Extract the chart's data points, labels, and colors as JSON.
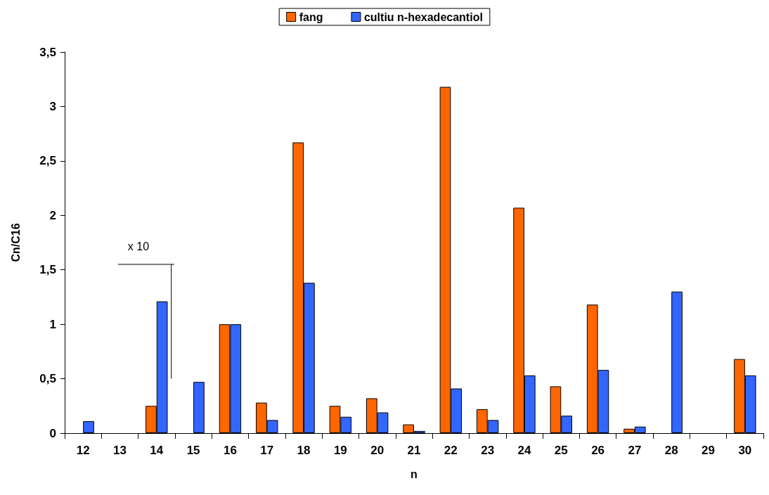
{
  "chart_data": {
    "type": "bar",
    "categories": [
      "12",
      "13",
      "14",
      "15",
      "16",
      "17",
      "18",
      "19",
      "20",
      "21",
      "22",
      "23",
      "24",
      "25",
      "26",
      "27",
      "28",
      "29",
      "30"
    ],
    "series": [
      {
        "name": "fang",
        "color": "#ff6600",
        "values": [
          null,
          null,
          0.25,
          null,
          1.0,
          0.28,
          2.67,
          0.25,
          0.32,
          0.08,
          3.18,
          0.22,
          2.07,
          0.43,
          1.18,
          0.04,
          null,
          null,
          0.68
        ]
      },
      {
        "name": "cultiu n-hexadecantiol",
        "color": "#3366ff",
        "values": [
          0.11,
          null,
          1.21,
          0.47,
          1.0,
          0.12,
          1.38,
          0.15,
          0.19,
          0.02,
          0.41,
          0.12,
          0.53,
          0.16,
          0.58,
          0.06,
          1.3,
          null,
          0.53
        ]
      }
    ],
    "xlabel": "n",
    "ylabel": "Cn/C16",
    "ylim": [
      0,
      3.5
    ],
    "yticks": [
      0,
      {
        "value": 0.5,
        "label": "0,5"
      },
      1,
      {
        "value": 1.5,
        "label": "1,5"
      },
      2,
      {
        "value": 2.5,
        "label": "2,5"
      },
      3,
      {
        "value": 3.5,
        "label": "3,5"
      }
    ],
    "annotations": [
      "x 10"
    ],
    "legend": "top",
    "grid": false
  }
}
